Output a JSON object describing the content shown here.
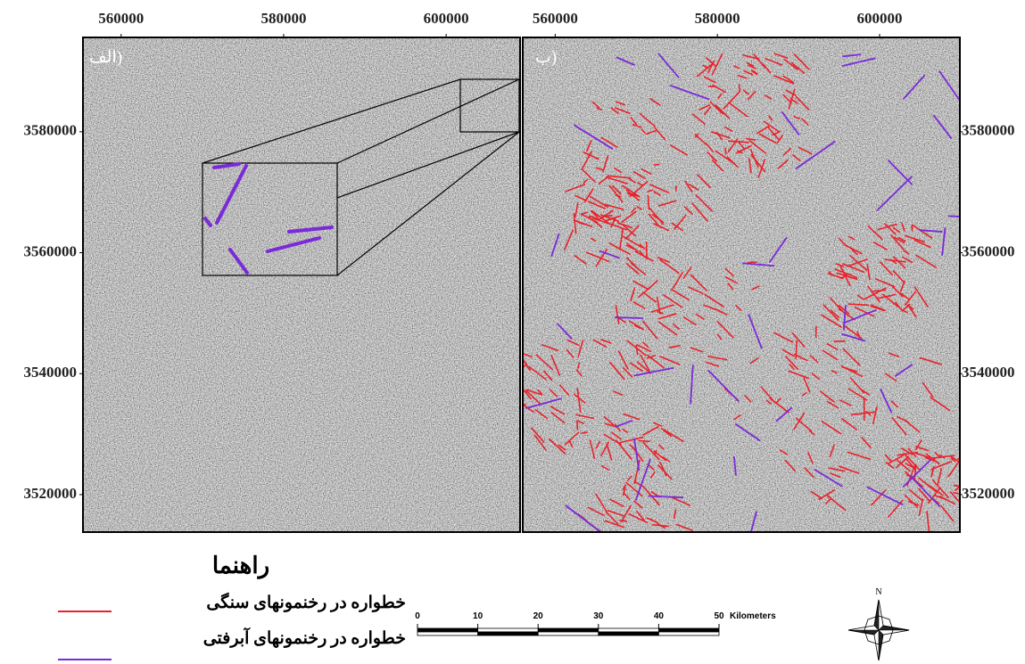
{
  "panels": [
    {
      "label": "(الف",
      "xlim": [
        555300,
        609100
      ],
      "ylim": [
        3513800,
        3595600
      ],
      "xticks": [
        560000,
        580000,
        600000
      ],
      "yticks": [
        3520000,
        3540000,
        3560000,
        3580000
      ]
    },
    {
      "label": "(ب",
      "xlim": [
        556000,
        609900
      ],
      "ylim": [
        3513800,
        3595600
      ],
      "xticks": [
        560000,
        580000,
        600000
      ],
      "yticks": [
        3520000,
        3540000,
        3560000,
        3580000
      ]
    }
  ],
  "legend": {
    "title": "راهنما",
    "items": [
      {
        "label": "خطواره در رخنمونهای سنگی",
        "color": "#e8222a"
      },
      {
        "label": "خطواره در رخنمونهای آبرفتی",
        "color": "#7a2ad8"
      }
    ]
  },
  "scale_bar": {
    "ticks": [
      0,
      10,
      20,
      30,
      40,
      50
    ],
    "unit": "Kilometers"
  },
  "north_arrow": {
    "label": "N"
  }
}
